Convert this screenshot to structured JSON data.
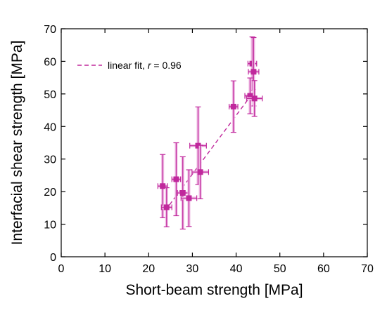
{
  "chart_data": {
    "type": "scatter",
    "title": "",
    "xlabel": "Short-beam strength [MPa]",
    "ylabel": "Interfacial shear strength [MPa]",
    "xlim": [
      0,
      70
    ],
    "ylim": [
      0,
      70
    ],
    "xticks": [
      "0",
      "10",
      "20",
      "30",
      "40",
      "50",
      "60",
      "70"
    ],
    "yticks": [
      "0",
      "10",
      "20",
      "30",
      "40",
      "50",
      "60",
      "70"
    ],
    "grid": false,
    "legend_position": "top-left",
    "colors": {
      "series": "#c0289c",
      "errorbar_halo": "#eeb9e3",
      "fit": "#c0289c"
    },
    "series": [
      {
        "points": [
          {
            "x": 23.2,
            "y": 21.7,
            "xerr": 1.1,
            "yerr": 9.7
          },
          {
            "x": 24.1,
            "y": 15.2,
            "xerr": 1.2,
            "yerr": 6.0
          },
          {
            "x": 26.3,
            "y": 23.8,
            "xerr": 1.0,
            "yerr": 11.2
          },
          {
            "x": 27.8,
            "y": 19.6,
            "xerr": 1.2,
            "yerr": 11.1
          },
          {
            "x": 29.2,
            "y": 18.0,
            "xerr": 1.8,
            "yerr": 8.7
          },
          {
            "x": 31.3,
            "y": 34.1,
            "xerr": 1.9,
            "yerr": 11.9
          },
          {
            "x": 31.8,
            "y": 26.0,
            "xerr": 1.9,
            "yerr": 8.2
          },
          {
            "x": 39.4,
            "y": 46.1,
            "xerr": 1.0,
            "yerr": 7.9
          },
          {
            "x": 43.7,
            "y": 59.3,
            "xerr": 1.0,
            "yerr": 8.2
          },
          {
            "x": 44.0,
            "y": 56.8,
            "xerr": 1.2,
            "yerr": 10.5
          },
          {
            "x": 43.2,
            "y": 49.4,
            "xerr": 1.2,
            "yerr": 5.5
          },
          {
            "x": 44.2,
            "y": 48.6,
            "xerr": 1.8,
            "yerr": 5.5
          }
        ]
      }
    ],
    "fit_line": {
      "label_prefix": "linear fit, ",
      "label_var": "r",
      "label_suffix": " = 0.96",
      "x": [
        23.8,
        44.5
      ],
      "y": [
        14.2,
        51.5
      ]
    }
  }
}
